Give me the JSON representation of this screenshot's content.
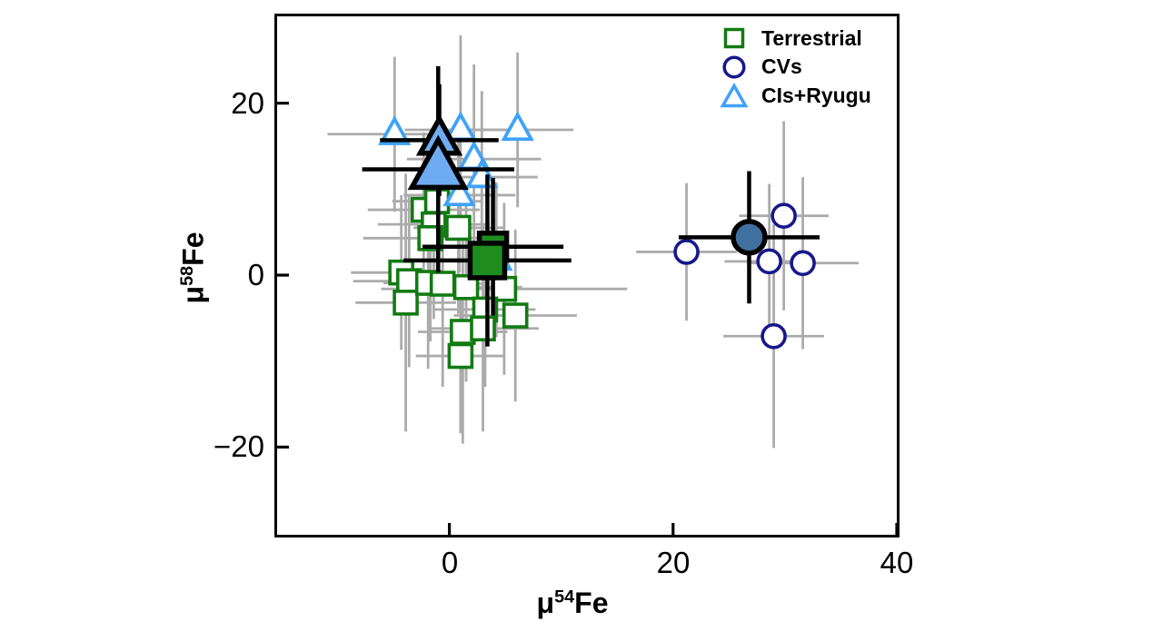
{
  "figure": {
    "background": "#ffffff",
    "frame_color": "#000000"
  },
  "axes": {
    "xlabel": {
      "mu": "μ",
      "sup": "54",
      "elem": "Fe"
    },
    "ylabel": {
      "mu": "μ",
      "sup": "58",
      "elem": "Fe"
    },
    "x_ticks": [
      {
        "value": 0,
        "label": "0"
      },
      {
        "value": 20,
        "label": "20"
      },
      {
        "value": 40,
        "label": "40"
      }
    ],
    "y_ticks": [
      {
        "value": 20,
        "label": "20"
      },
      {
        "value": 0,
        "label": "0"
      },
      {
        "value": -20,
        "label": "−20"
      }
    ]
  },
  "legend": {
    "items": [
      {
        "label": "Terrestrial",
        "symbol": "square",
        "color": "#127a12"
      },
      {
        "label": "CVs",
        "symbol": "circle",
        "color": "#16188a"
      },
      {
        "label": "CIs+Ryugu",
        "symbol": "triangle",
        "color": "#3fa2f8"
      }
    ]
  },
  "chart_data": {
    "type": "scatter",
    "title": "",
    "xlabel": "μ⁵⁴Fe",
    "ylabel": "μ⁵⁸Fe",
    "xlim": [
      -15.4,
      40
    ],
    "ylim": [
      -30.2,
      30.1
    ],
    "grid": false,
    "legend_position": "upper right inside",
    "tick_color": "#000000",
    "individual_error_color": "#ababab",
    "mean_error_color": "#000000",
    "series": [
      {
        "name": "Terrestrial",
        "role": "individual",
        "symbol": "square",
        "marker_color": "#127a12",
        "marker_fill": "#ffffff",
        "marker_size": 25,
        "stroke_width": 3.6,
        "points": [
          {
            "x": -2.3,
            "y": 7.6,
            "ex": 5,
            "ey": 9
          },
          {
            "x": -1.1,
            "y": 8.6,
            "ex": 4,
            "ey": 8
          },
          {
            "x": -1.4,
            "y": 5.9,
            "ex": 5,
            "ey": 11
          },
          {
            "x": 0.8,
            "y": 5.5,
            "ex": 4,
            "ey": 10
          },
          {
            "x": -1.7,
            "y": 4.3,
            "ex": 6,
            "ey": 12
          },
          {
            "x": -4.3,
            "y": 0.3,
            "ex": 4.5,
            "ey": 9
          },
          {
            "x": -3.6,
            "y": -0.7,
            "ex": 5,
            "ey": 10
          },
          {
            "x": -3.9,
            "y": -3.2,
            "ex": 4.5,
            "ey": 15
          },
          {
            "x": -1.9,
            "y": -0.9,
            "ex": 4,
            "ey": 10
          },
          {
            "x": -0.6,
            "y": -1.0,
            "ex": 4,
            "ey": 12
          },
          {
            "x": 1.5,
            "y": -1.4,
            "ex": 5,
            "ey": 11
          },
          {
            "x": 4.9,
            "y": -1.6,
            "ex": 11,
            "ey": 10
          },
          {
            "x": 3.2,
            "y": -4.0,
            "ex": 4.5,
            "ey": 9
          },
          {
            "x": 5.9,
            "y": -4.7,
            "ex": 5.5,
            "ey": 10
          },
          {
            "x": 1.2,
            "y": -6.6,
            "ex": 4,
            "ey": 13
          },
          {
            "x": 3.0,
            "y": -6.2,
            "ex": 5,
            "ey": 12
          },
          {
            "x": 1.0,
            "y": -9.4,
            "ex": 4,
            "ey": 9
          }
        ]
      },
      {
        "name": "CIs+Ryugu",
        "role": "individual",
        "symbol": "triangle",
        "marker_color": "#3fa2f8",
        "marker_fill": "#ffffff",
        "marker_size": 30,
        "stroke_width": 3.8,
        "points": [
          {
            "x": -4.9,
            "y": 16.4,
            "ex": 6,
            "ey": 9
          },
          {
            "x": 1.0,
            "y": 16.9,
            "ex": 5,
            "ey": 11
          },
          {
            "x": 6.1,
            "y": 16.9,
            "ex": 5,
            "ey": 9
          },
          {
            "x": 2.2,
            "y": 13.5,
            "ex": 6,
            "ey": 11
          },
          {
            "x": 2.9,
            "y": 11.4,
            "ex": 5,
            "ey": 10
          },
          {
            "x": 0.9,
            "y": 9.3,
            "ex": 5,
            "ey": 9
          },
          {
            "x": 4.2,
            "y": 1.8,
            "ex": 5,
            "ey": 9
          }
        ]
      },
      {
        "name": "CVs",
        "role": "individual",
        "symbol": "circle",
        "marker_color": "#16188a",
        "marker_fill": "#ffffff",
        "marker_size": 25,
        "stroke_width": 3.6,
        "points": [
          {
            "x": 29.9,
            "y": 6.9,
            "ex": 4,
            "ey": 11
          },
          {
            "x": 21.2,
            "y": 2.7,
            "ex": 4.5,
            "ey": 8
          },
          {
            "x": 28.6,
            "y": 1.6,
            "ex": 4,
            "ey": 9
          },
          {
            "x": 31.6,
            "y": 1.4,
            "ex": 5,
            "ey": 10
          },
          {
            "x": 29.0,
            "y": -7.1,
            "ex": 4.5,
            "ey": 13
          }
        ]
      },
      {
        "name": "CIs+Ryugu mean",
        "role": "mean",
        "symbol": "triangle",
        "marker_color": "#000000",
        "marker_fill": "#6fabf0",
        "marker_size": 42,
        "stroke_width": 5.5,
        "points": [
          {
            "x": -0.9,
            "y": 15.7,
            "ex": 5.3,
            "ey": 6.5,
            "size": 42
          },
          {
            "x": -1.0,
            "y": 12.3,
            "ex": 6.8,
            "ey": 12,
            "size": 58
          }
        ]
      },
      {
        "name": "Terrestrial mean",
        "role": "mean",
        "symbol": "square",
        "marker_color": "#000000",
        "marker_fill": "#1f8c1f",
        "marker_size": 30,
        "stroke_width": 5.5,
        "points": [
          {
            "x": 3.9,
            "y": 3.3,
            "ex": 6.3,
            "ey": 8,
            "size": 30
          },
          {
            "x": 3.4,
            "y": 1.7,
            "ex": 7.5,
            "ey": 10,
            "size": 38
          }
        ]
      },
      {
        "name": "CVs mean",
        "role": "mean",
        "symbol": "circle",
        "marker_color": "#000000",
        "marker_fill": "#3f709f",
        "marker_size": 35,
        "stroke_width": 5.5,
        "points": [
          {
            "x": 26.8,
            "y": 4.4,
            "ex": 6.3,
            "ey": 7.7,
            "size": 35
          }
        ]
      }
    ]
  }
}
